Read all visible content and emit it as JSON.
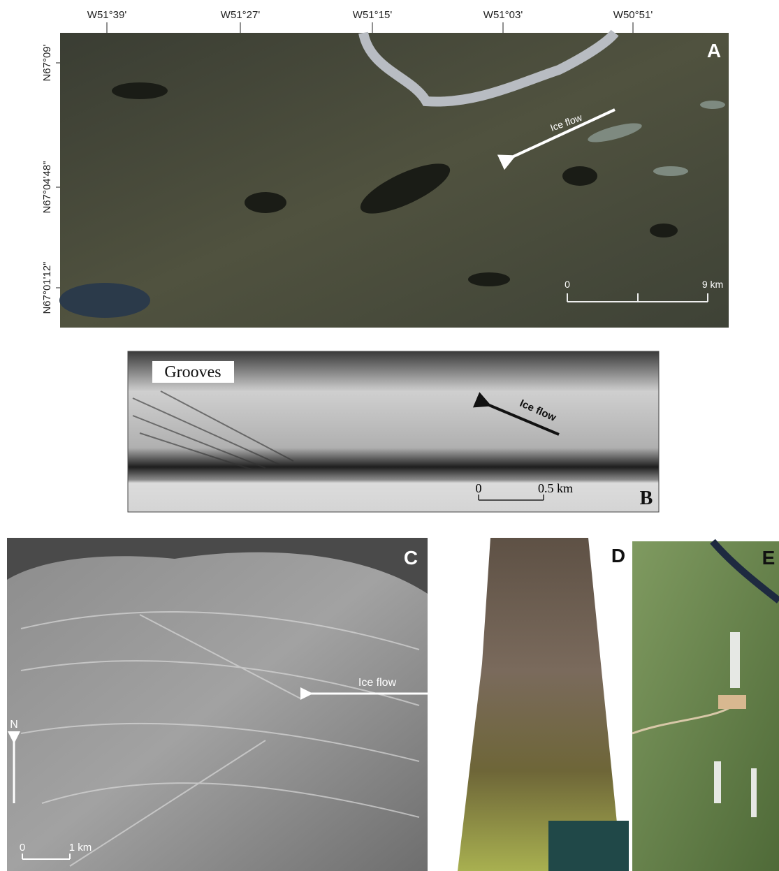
{
  "panels": {
    "a": {
      "label": "A",
      "x_ticks": [
        "W51°39'",
        "W51°27'",
        "W51°15'",
        "W51°03'",
        "W50°51'"
      ],
      "y_ticks": [
        "N67°09'",
        "N67°04'48\"",
        "N67°01'12\""
      ],
      "annotation": "Ice flow",
      "scale_bar": [
        "0",
        "9 km"
      ]
    },
    "b": {
      "label": "B",
      "title": "Grooves",
      "annotation": "Ice flow",
      "scale_bar": [
        "0",
        "0.5 km"
      ]
    },
    "c": {
      "label": "C",
      "annotation": "Ice flow",
      "north": "N",
      "scale_bar": [
        "0",
        "1 km"
      ]
    },
    "d": {
      "label": "D"
    },
    "e": {
      "label": "E"
    }
  }
}
